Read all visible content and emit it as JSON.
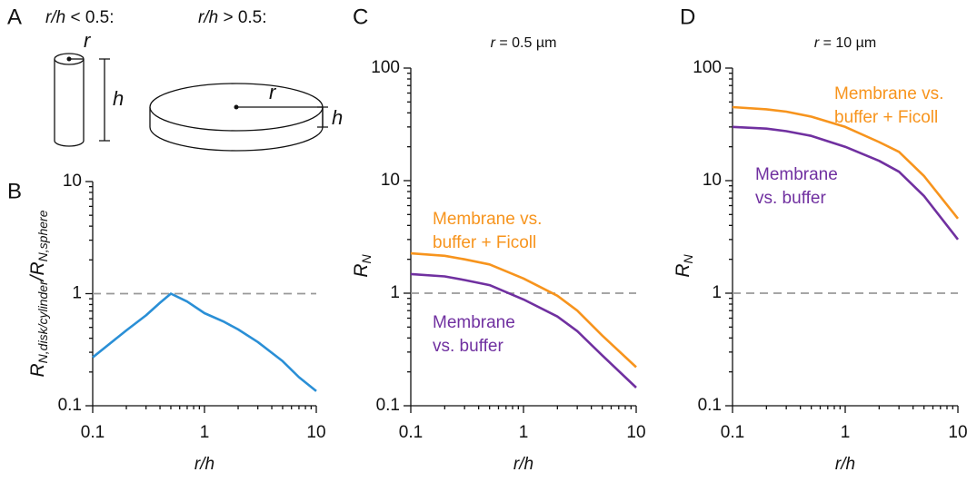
{
  "diagram": {
    "panel": "A",
    "left_label": [
      {
        "text": "r/h",
        "italic": true
      },
      {
        "text": " < 0.5:"
      }
    ],
    "right_label": [
      {
        "text": "r/h",
        "italic": true
      },
      {
        "text": " > 0.5:"
      }
    ],
    "cylinder": {
      "r": "r",
      "h": "h"
    },
    "disk": {
      "r": "r",
      "h": "h"
    }
  },
  "chart_data": [
    {
      "type": "line",
      "panel": "B",
      "xlabel": [
        {
          "text": "r/h",
          "italic": true
        }
      ],
      "ylabel": [
        {
          "text": "R",
          "italic": true
        },
        {
          "text": "N,disk/cylinder",
          "italic": true,
          "sub": true
        },
        {
          "text": "/R",
          "italic": true
        },
        {
          "text": "N,sphere",
          "italic": true,
          "sub": true
        }
      ],
      "x": [
        0.1,
        0.2,
        0.3,
        0.4,
        0.5,
        0.7,
        1,
        1.5,
        2,
        3,
        5,
        7,
        10
      ],
      "series": [
        {
          "color": "#2a8fd6",
          "values": [
            0.27,
            0.47,
            0.64,
            0.83,
            1,
            0.85,
            0.67,
            0.56,
            0.48,
            0.37,
            0.25,
            0.18,
            0.135
          ]
        }
      ],
      "xlim": [
        0.1,
        10
      ],
      "ylim": [
        0.1,
        10
      ],
      "xticks": [
        0.1,
        1,
        10
      ],
      "yticks": [
        0.1,
        1,
        10
      ],
      "log_x": true,
      "log_y": true,
      "hline": 1
    },
    {
      "type": "line",
      "panel": "C",
      "title": [
        {
          "text": "r",
          "italic": true
        },
        {
          "text": " = 0.5 µm"
        }
      ],
      "xlabel": [
        {
          "text": "r/h",
          "italic": true
        }
      ],
      "ylabel": [
        {
          "text": "R",
          "italic": true
        },
        {
          "text": "N",
          "italic": true,
          "sub": true
        }
      ],
      "x": [
        0.1,
        0.2,
        0.3,
        0.5,
        1,
        2,
        3,
        5,
        10
      ],
      "series": [
        {
          "name": [
            "Membrane vs.",
            "buffer + Ficoll"
          ],
          "color": "#f7941d",
          "values": [
            2.26,
            2.15,
            2.0,
            1.8,
            1.35,
            0.95,
            0.7,
            0.42,
            0.22
          ]
        },
        {
          "name": [
            "Membrane",
            "vs. buffer"
          ],
          "color": "#7030a0",
          "values": [
            1.48,
            1.41,
            1.31,
            1.18,
            0.88,
            0.62,
            0.46,
            0.28,
            0.145
          ]
        }
      ],
      "xlim": [
        0.1,
        10
      ],
      "ylim": [
        0.1,
        100
      ],
      "xticks": [
        0.1,
        1,
        10
      ],
      "yticks": [
        0.1,
        1,
        10,
        100
      ],
      "log_x": true,
      "log_y": true,
      "hline": 1
    },
    {
      "type": "line",
      "panel": "D",
      "title": [
        {
          "text": "r",
          "italic": true
        },
        {
          "text": " = 10 µm"
        }
      ],
      "xlabel": [
        {
          "text": "r/h",
          "italic": true
        }
      ],
      "ylabel": [
        {
          "text": "R",
          "italic": true
        },
        {
          "text": "N",
          "italic": true,
          "sub": true
        }
      ],
      "x": [
        0.1,
        0.2,
        0.3,
        0.5,
        1,
        2,
        3,
        5,
        10
      ],
      "series": [
        {
          "name": [
            "Membrane vs.",
            "buffer + Ficoll"
          ],
          "color": "#f7941d",
          "values": [
            45,
            43,
            41,
            37,
            30,
            22,
            18,
            11,
            4.6
          ]
        },
        {
          "name": [
            "Membrane",
            "vs. buffer"
          ],
          "color": "#7030a0",
          "values": [
            30,
            29,
            27.5,
            25,
            20,
            15,
            12,
            7.3,
            3.0
          ]
        }
      ],
      "xlim": [
        0.1,
        10
      ],
      "ylim": [
        0.1,
        100
      ],
      "xticks": [
        0.1,
        1,
        10
      ],
      "yticks": [
        0.1,
        1,
        10,
        100
      ],
      "log_x": true,
      "log_y": true,
      "hline": 1
    }
  ]
}
